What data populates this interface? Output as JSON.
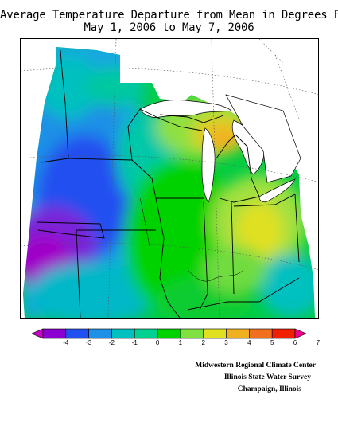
{
  "title_line1": "Average Temperature Departure from Mean in Degrees F",
  "title_line2": "May 1, 2006 to May 7, 2006",
  "legend": {
    "ticks": [
      "-4",
      "-3",
      "-2",
      "-1",
      "0",
      "1",
      "2",
      "3",
      "4",
      "5",
      "6",
      "7"
    ],
    "colors": [
      "#c800c8",
      "#8a00d0",
      "#2050f0",
      "#1e90e6",
      "#00c0c0",
      "#00d090",
      "#00d200",
      "#80e040",
      "#e0e020",
      "#f0b020",
      "#f07020",
      "#f02000",
      "#f00090"
    ]
  },
  "credits": {
    "line1": "Midwestern Regional Climate Center",
    "line2": "Illinois State Water Survey",
    "line3": "Champaign, Illinois"
  }
}
